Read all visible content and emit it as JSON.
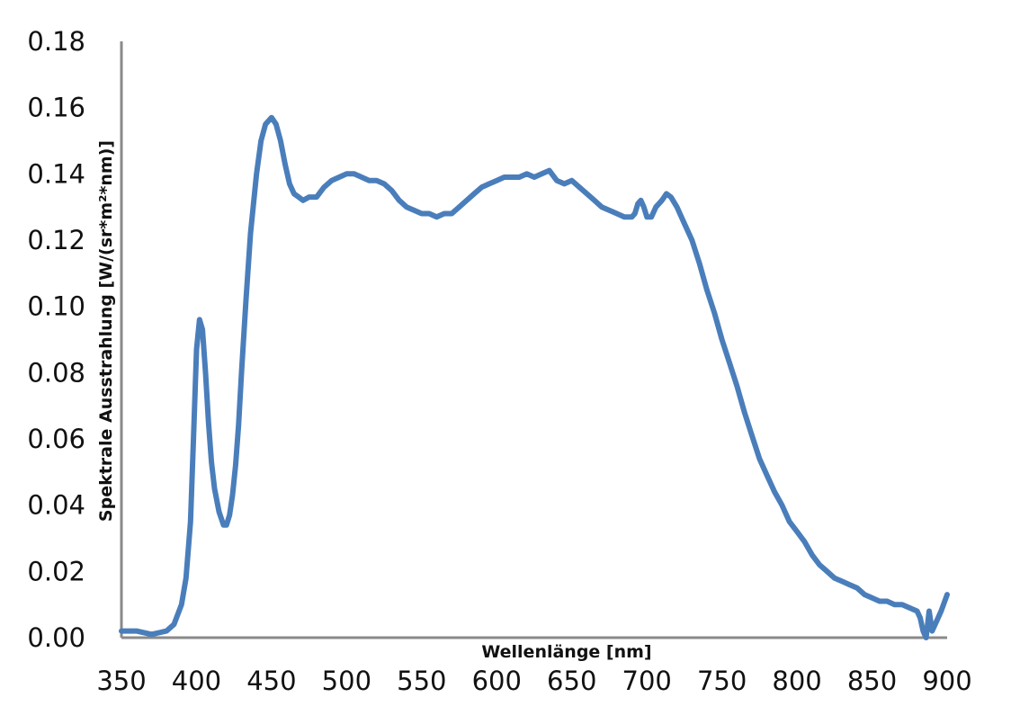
{
  "chart_data": {
    "type": "line",
    "xlabel": "Wellenlänge [nm]",
    "ylabel": "Spektrale Ausstrahlung [W/(sr*m²*nm)]",
    "xlim": [
      350,
      900
    ],
    "ylim": [
      0,
      0.18
    ],
    "x_ticks": [
      "350",
      "400",
      "450",
      "500",
      "550",
      "600",
      "650",
      "700",
      "750",
      "800",
      "850",
      "900"
    ],
    "y_ticks": [
      "0.00",
      "0.02",
      "0.04",
      "0.06",
      "0.08",
      "0.10",
      "0.12",
      "0.14",
      "0.16",
      "0.18"
    ],
    "grid": false,
    "legend": "none",
    "line_color": "#4a7ebb",
    "series": [
      {
        "x": [
          350,
          360,
          370,
          375,
          380,
          385,
          390,
          393,
          396,
          398,
          400,
          402,
          404,
          406,
          408,
          410,
          412,
          415,
          418,
          420,
          422,
          424,
          426,
          428,
          430,
          433,
          436,
          440,
          443,
          446,
          450,
          453,
          456,
          459,
          462,
          465,
          468,
          471,
          475,
          480,
          485,
          490,
          495,
          500,
          505,
          510,
          515,
          520,
          525,
          530,
          535,
          540,
          545,
          550,
          555,
          560,
          565,
          570,
          575,
          580,
          585,
          590,
          595,
          600,
          605,
          610,
          615,
          620,
          625,
          630,
          635,
          640,
          645,
          650,
          655,
          660,
          665,
          670,
          675,
          680,
          685,
          690,
          692,
          694,
          696,
          698,
          700,
          703,
          706,
          710,
          713,
          716,
          720,
          725,
          730,
          735,
          740,
          745,
          750,
          755,
          760,
          765,
          770,
          775,
          780,
          785,
          790,
          795,
          800,
          805,
          810,
          815,
          820,
          825,
          830,
          835,
          840,
          845,
          850,
          855,
          860,
          865,
          870,
          875,
          880,
          882,
          884,
          886,
          888,
          890,
          893,
          896,
          900
        ],
        "y": [
          0.002,
          0.002,
          0.001,
          0.0015,
          0.002,
          0.004,
          0.01,
          0.018,
          0.035,
          0.06,
          0.087,
          0.096,
          0.093,
          0.08,
          0.065,
          0.053,
          0.045,
          0.038,
          0.034,
          0.034,
          0.037,
          0.043,
          0.052,
          0.064,
          0.08,
          0.102,
          0.122,
          0.14,
          0.15,
          0.155,
          0.157,
          0.155,
          0.15,
          0.143,
          0.137,
          0.134,
          0.133,
          0.132,
          0.133,
          0.133,
          0.136,
          0.138,
          0.139,
          0.14,
          0.14,
          0.139,
          0.138,
          0.138,
          0.137,
          0.135,
          0.132,
          0.13,
          0.129,
          0.128,
          0.128,
          0.127,
          0.128,
          0.128,
          0.13,
          0.132,
          0.134,
          0.136,
          0.137,
          0.138,
          0.139,
          0.139,
          0.139,
          0.14,
          0.139,
          0.14,
          0.141,
          0.138,
          0.137,
          0.138,
          0.136,
          0.134,
          0.132,
          0.13,
          0.129,
          0.128,
          0.127,
          0.127,
          0.128,
          0.131,
          0.132,
          0.13,
          0.127,
          0.127,
          0.13,
          0.132,
          0.134,
          0.133,
          0.13,
          0.125,
          0.12,
          0.113,
          0.105,
          0.098,
          0.09,
          0.083,
          0.076,
          0.068,
          0.061,
          0.054,
          0.049,
          0.044,
          0.04,
          0.035,
          0.032,
          0.029,
          0.025,
          0.022,
          0.02,
          0.018,
          0.017,
          0.016,
          0.015,
          0.013,
          0.012,
          0.011,
          0.011,
          0.01,
          0.01,
          0.009,
          0.008,
          0.006,
          0.002,
          0.0,
          0.008,
          0.002,
          0.005,
          0.008,
          0.013
        ]
      }
    ]
  }
}
